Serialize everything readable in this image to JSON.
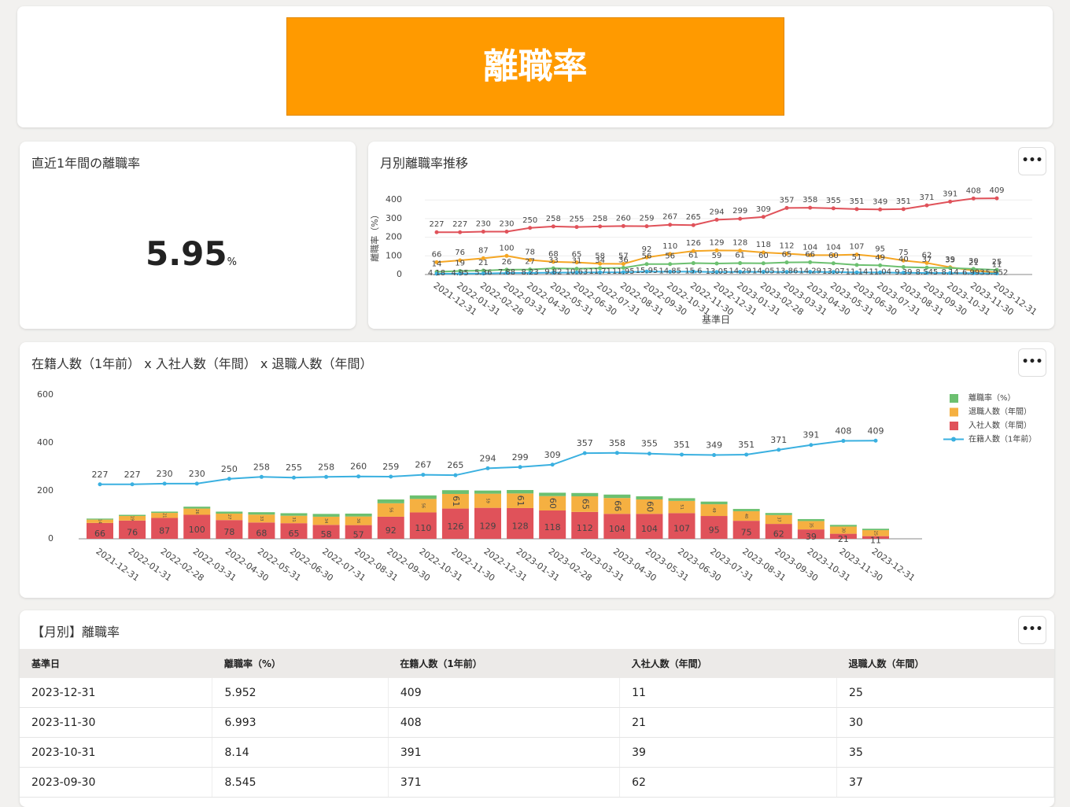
{
  "header": {
    "title": "離職率"
  },
  "kpi": {
    "title": "直近1年間の離職率",
    "value": "5.95",
    "unit": "%"
  },
  "chart_data": [
    {
      "type": "line",
      "title": "月別離職率推移",
      "x_label": "基準日",
      "y_label": "離職率（%）",
      "x": [
        "2021-12-31",
        "2022-01-31",
        "2022-02-28",
        "2022-03-31",
        "2022-04-30",
        "2022-05-31",
        "2022-06-30",
        "2022-07-31",
        "2022-08-31",
        "2022-09-30",
        "2022-10-31",
        "2022-11-30",
        "2022-12-31",
        "2023-01-31",
        "2023-02-28",
        "2023-03-31",
        "2023-04-30",
        "2023-05-31",
        "2023-06-30",
        "2023-07-31",
        "2023-08-31",
        "2023-09-30",
        "2023-10-31",
        "2023-11-30",
        "2023-12-31"
      ],
      "ylim": [
        0,
        460
      ],
      "yticks": [
        0,
        100,
        200,
        300,
        400
      ],
      "series": [
        {
          "color": "#e0525a",
          "values": [
            227,
            227,
            230,
            230,
            250,
            258,
            255,
            258,
            260,
            259,
            267,
            265,
            294,
            299,
            309,
            357,
            358,
            355,
            351,
            349,
            351,
            371,
            391,
            408,
            409
          ]
        },
        {
          "color": "#f5a623",
          "values": [
            66,
            76,
            87,
            100,
            78,
            68,
            65,
            58,
            57,
            92,
            110,
            126,
            129,
            128,
            118,
            112,
            104,
            104,
            107,
            95,
            75,
            62,
            39,
            21,
            11
          ]
        },
        {
          "color": "#6cc070",
          "values": [
            14,
            19,
            21,
            26,
            27,
            33,
            31,
            34,
            36,
            56,
            56,
            61,
            59,
            61,
            60,
            65,
            66,
            60,
            51,
            49,
            40,
            37,
            35,
            30,
            25
          ]
        },
        {
          "color": "#3ab0e0",
          "values": [
            4.18,
            4.95,
            5.36,
            7.88,
            8.23,
            9.82,
            10.63,
            11.71,
            11.95,
            15.95,
            14.85,
            15.6,
            13.05,
            14.29,
            14.05,
            13.86,
            14.29,
            13.07,
            11.14,
            11.04,
            9.39,
            8.545,
            8.14,
            6.993,
            5.952
          ]
        }
      ]
    },
    {
      "type": "bar",
      "title": "在籍人数（1年前） x 入社人数（年間） x 退職人数（年間）",
      "x": [
        "2021-12-31",
        "2022-01-31",
        "2022-02-28",
        "2022-03-31",
        "2022-04-30",
        "2022-05-31",
        "2022-06-30",
        "2022-07-31",
        "2022-08-31",
        "2022-09-30",
        "2022-10-31",
        "2022-11-30",
        "2022-12-31",
        "2023-01-31",
        "2023-02-28",
        "2023-03-31",
        "2023-04-30",
        "2023-05-31",
        "2023-06-30",
        "2023-07-31",
        "2023-08-31",
        "2023-09-30",
        "2023-10-31",
        "2023-11-30",
        "2023-12-31"
      ],
      "ylim": [
        0,
        600
      ],
      "yticks": [
        0,
        200,
        400,
        600
      ],
      "series": [
        {
          "name": "離職率（%）",
          "color": "#6cc070",
          "values": [
            4.18,
            4.95,
            5.36,
            7.88,
            8.23,
            9.82,
            10.63,
            11.71,
            11.95,
            15.95,
            14.85,
            15.6,
            13.05,
            14.29,
            14.05,
            13.86,
            14.29,
            13.07,
            11.14,
            11.04,
            9.39,
            8.545,
            8.14,
            6.993,
            5.952
          ]
        },
        {
          "name": "退職人数（年間）",
          "color": "#f5b041",
          "values": [
            14,
            19,
            21,
            26,
            27,
            33,
            31,
            34,
            36,
            56,
            56,
            61,
            59,
            61,
            60,
            65,
            66,
            60,
            51,
            49,
            40,
            37,
            35,
            30,
            25
          ]
        },
        {
          "name": "入社人数（年間）",
          "color": "#e0525a",
          "values": [
            66,
            76,
            87,
            100,
            78,
            68,
            65,
            58,
            57,
            92,
            110,
            126,
            129,
            128,
            118,
            112,
            104,
            104,
            107,
            95,
            75,
            62,
            39,
            21,
            11
          ]
        },
        {
          "name": "在籍人数（1年前）",
          "color": "#3ab0e0",
          "values": [
            227,
            227,
            230,
            230,
            250,
            258,
            255,
            258,
            260,
            259,
            267,
            265,
            294,
            299,
            309,
            357,
            358,
            355,
            351,
            349,
            351,
            371,
            391,
            408,
            409
          ]
        }
      ]
    }
  ],
  "table": {
    "title": "【月別】離職率",
    "columns": [
      "基準日",
      "離職率（%）",
      "在籍人数（1年前）",
      "入社人数（年間）",
      "退職人数（年間）"
    ],
    "rows": [
      [
        "2023-12-31",
        5.952,
        409,
        11,
        25
      ],
      [
        "2023-11-30",
        6.993,
        408,
        21,
        30
      ],
      [
        "2023-10-31",
        8.14,
        391,
        39,
        35
      ],
      [
        "2023-09-30",
        8.545,
        371,
        62,
        37
      ]
    ]
  }
}
